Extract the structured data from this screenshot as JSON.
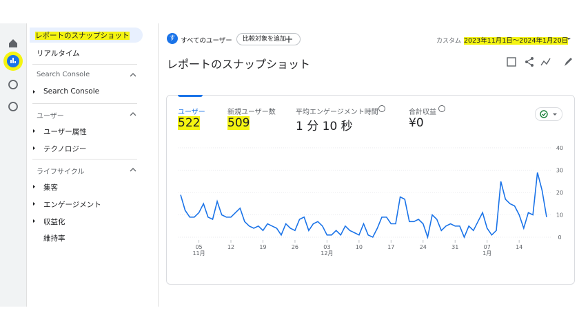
{
  "sidebar": {
    "items": [
      "レポートのスナップショット",
      "リアルタイム"
    ],
    "sections": [
      {
        "title": "Search Console",
        "items": [
          "Search Console"
        ]
      },
      {
        "title": "ユーザー",
        "items": [
          "ユーザー属性",
          "テクノロジー"
        ]
      },
      {
        "title": "ライフサイクル",
        "items": [
          "集客",
          "エンゲージメント",
          "収益化"
        ]
      }
    ],
    "extra_item": "維持率"
  },
  "topbar": {
    "segment_badge": "す",
    "segment": "すべてのユーザー",
    "compare": "比較対象を追加",
    "date_prefix": "カスタム",
    "date_range": "2023年11月1日～2024年1月20日"
  },
  "page_title": "レポートのスナップショット",
  "metrics": [
    {
      "label": "ユーザー",
      "value": 522
    },
    {
      "label": "新規ユーザー数",
      "value": 509
    },
    {
      "label": "平均エンゲージメント時間",
      "value": "1 分 10 秒"
    },
    {
      "label": "合計収益",
      "value": "¥0"
    }
  ],
  "chart_data": {
    "type": "line",
    "color": "#1a73e8",
    "categories": [
      null,
      null,
      null,
      null,
      "05",
      null,
      null,
      null,
      null,
      null,
      null,
      "12",
      null,
      null,
      null,
      null,
      null,
      null,
      "19",
      null,
      null,
      null,
      null,
      null,
      null,
      "26",
      null,
      null,
      null,
      null,
      null,
      null,
      "03",
      null,
      null,
      null,
      null,
      null,
      null,
      "10",
      null,
      null,
      null,
      null,
      null,
      null,
      "17",
      null,
      null,
      null,
      null,
      null,
      null,
      "24",
      null,
      null,
      null,
      null,
      null,
      null,
      "31",
      null,
      null,
      null,
      null,
      null,
      null,
      "07",
      null,
      null,
      null,
      null,
      null,
      null,
      "14",
      null,
      null,
      null,
      null,
      null,
      null
    ],
    "category_months": [
      null,
      null,
      null,
      null,
      "11月",
      null,
      null,
      null,
      null,
      null,
      null,
      null,
      null,
      null,
      null,
      null,
      null,
      null,
      null,
      null,
      null,
      null,
      null,
      null,
      null,
      null,
      null,
      null,
      null,
      null,
      null,
      null,
      "12月",
      null,
      null,
      null,
      null,
      null,
      null,
      null,
      null,
      null,
      null,
      null,
      null,
      null,
      null,
      null,
      null,
      null,
      null,
      null,
      null,
      null,
      null,
      null,
      null,
      null,
      null,
      null,
      null,
      null,
      null,
      null,
      null,
      null,
      null,
      "1月",
      null,
      null,
      null,
      null,
      null,
      null,
      null,
      null,
      null,
      null,
      null,
      null,
      null
    ],
    "values": [
      19,
      12,
      9,
      9,
      11,
      15,
      9,
      8,
      16,
      10,
      9,
      9,
      11,
      13,
      7,
      5,
      4,
      5,
      3,
      6,
      5,
      4,
      1,
      6,
      4,
      3,
      8,
      9,
      3,
      6,
      7,
      5,
      1,
      1,
      3,
      1,
      5,
      3,
      2,
      1,
      6,
      1,
      0,
      4,
      9,
      9,
      6,
      6,
      18,
      17,
      7,
      7,
      8,
      6,
      0,
      10,
      8,
      3,
      5,
      6,
      5,
      5,
      0,
      5,
      3,
      7,
      11,
      4,
      1,
      3,
      25,
      17,
      15,
      14,
      10,
      4,
      11,
      10,
      29,
      21,
      9
    ],
    "ylim": [
      0,
      40
    ],
    "yticks": [
      0,
      10,
      20,
      30,
      40
    ],
    "grid": true
  }
}
